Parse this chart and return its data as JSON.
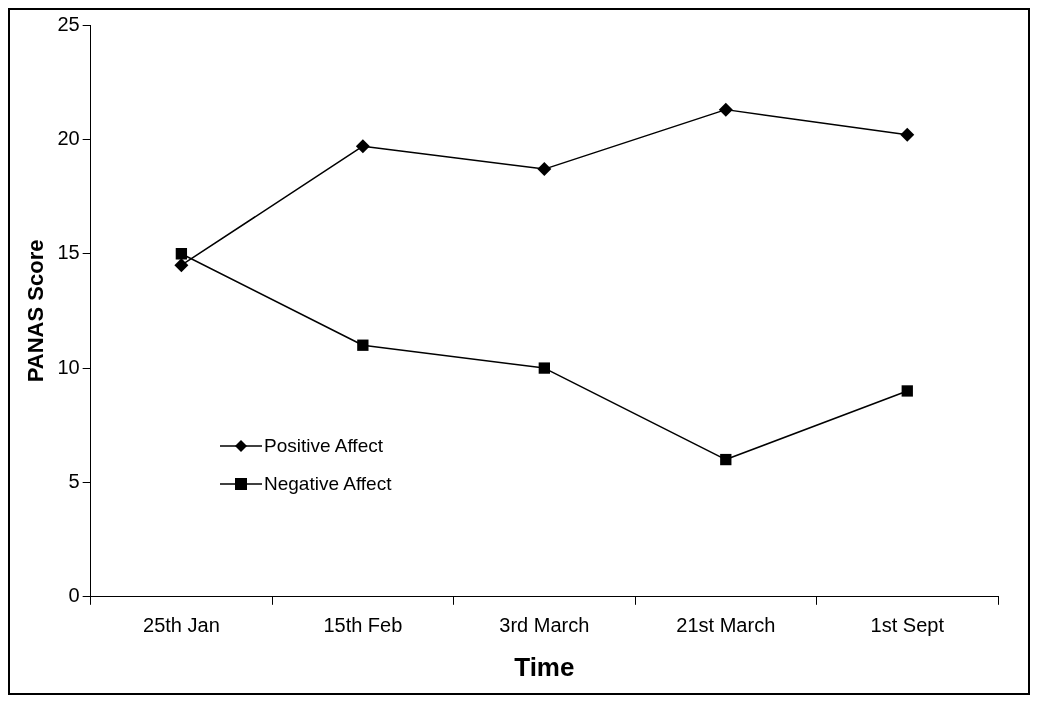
{
  "chart_data": {
    "type": "line",
    "xlabel": "Time",
    "ylabel": "PANAS Score",
    "categories": [
      "25th Jan",
      "15th Feb",
      "3rd March",
      "21st March",
      "1st Sept"
    ],
    "ylim": [
      0,
      25
    ],
    "yticks": [
      0,
      5,
      10,
      15,
      20,
      25
    ],
    "grid": false,
    "legend": "left",
    "line_style": "solid",
    "series": [
      {
        "name": "Positive Affect",
        "color": "#000000",
        "marker": "diamond",
        "values": [
          14.5,
          19.7,
          18.7,
          21.3,
          20.2
        ]
      },
      {
        "name": "Negative Affect",
        "color": "#000000",
        "marker": "square",
        "values": [
          15,
          11,
          10,
          6,
          9
        ]
      }
    ]
  }
}
